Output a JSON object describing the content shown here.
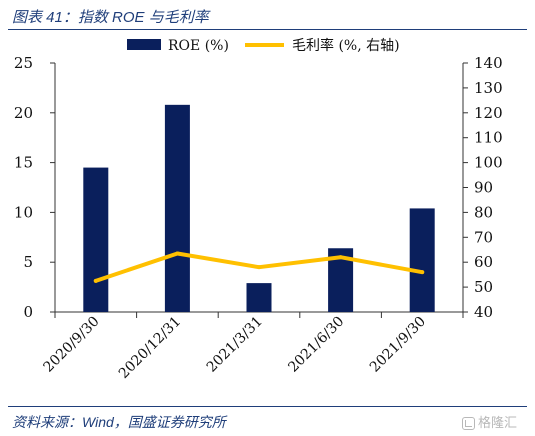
{
  "figure": {
    "title": "图表 41：指数 ROE 与毛利率",
    "source": "资料来源：Wind，国盛证券研究所",
    "watermark": "格隆汇"
  },
  "colors": {
    "bar": "#0a1f5c",
    "line": "#ffc000",
    "header": "#1f3e7a"
  },
  "chart_data": {
    "type": "bar",
    "categories": [
      "2020/9/30",
      "2020/12/31",
      "2021/3/31",
      "2021/6/30",
      "2021/9/30"
    ],
    "series": [
      {
        "name": "ROE (%)",
        "type": "bar",
        "axis": "left",
        "values": [
          14.5,
          20.8,
          2.9,
          6.4,
          10.4
        ]
      },
      {
        "name": "毛利率 (%, 右轴)",
        "type": "line",
        "axis": "right",
        "values": [
          52.5,
          63.5,
          58.0,
          62.0,
          56.0
        ]
      }
    ],
    "ylim_left": [
      0,
      25
    ],
    "yticks_left": [
      0,
      5,
      10,
      15,
      20,
      25
    ],
    "ylim_right": [
      40,
      140
    ],
    "yticks_right": [
      40,
      50,
      60,
      70,
      80,
      90,
      100,
      110,
      120,
      130,
      140
    ],
    "legend_position": "top-center",
    "grid": false
  }
}
